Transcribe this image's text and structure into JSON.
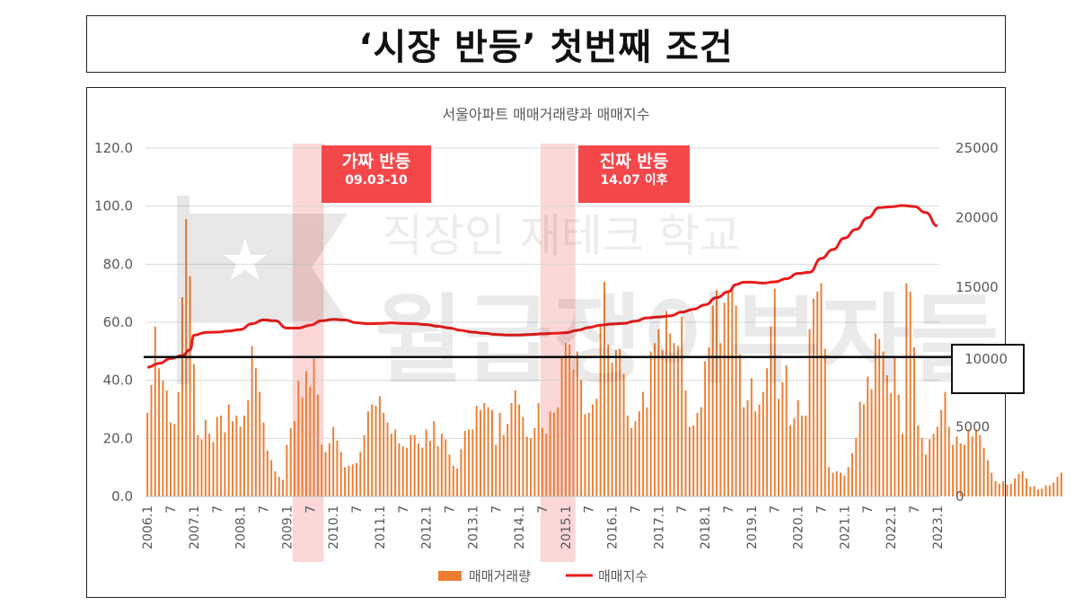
{
  "page": {
    "title": "‘시장 반등’ 첫번째 조건"
  },
  "watermark": {
    "line1": "직장인 재테크 학교",
    "line2": "월급쟁이부자들"
  },
  "annotations": {
    "fake": {
      "label": "가짜 반등",
      "range": "09.03-10"
    },
    "real": {
      "label": "진짜 반등",
      "range": "14.07 이후"
    },
    "threshold_label": "10000"
  },
  "chart_data": {
    "type": "bar",
    "title": "서울아파트 매매거래량과 매매지수",
    "xlabel": "",
    "ylabel": "",
    "grid": true,
    "legend_position": "bottom",
    "x_tick_labels": [
      "2006.1",
      "7",
      "2007.1",
      "7",
      "2008.1",
      "7",
      "2009.1",
      "7",
      "2010.1",
      "7",
      "2011.1",
      "7",
      "2012.1",
      "7",
      "2013.1",
      "7",
      "2014.1",
      "7",
      "2015.1",
      "7",
      "2016.1",
      "7",
      "2017.1",
      "7",
      "2018.1",
      "7",
      "2019.1",
      "7",
      "2020.1",
      "7",
      "2021.1",
      "7",
      "2022.1",
      "7",
      "2023.1"
    ],
    "y_left": {
      "ticks": [
        "0.0",
        "20.0",
        "40.0",
        "60.0",
        "80.0",
        "100.0",
        "120.0"
      ],
      "lim": [
        0,
        120
      ]
    },
    "y_right": {
      "ticks": [
        "0",
        "5000",
        "10000",
        "15000",
        "20000",
        "25000"
      ],
      "lim": [
        0,
        25000
      ]
    },
    "shaded_periods": [
      {
        "start": "2009.03",
        "end": "2009.10",
        "color": "#f9c9c9"
      },
      {
        "start": "2014.07",
        "end": "2015.03",
        "color": "#f9c9c9"
      }
    ],
    "reference_line": {
      "axis": "right",
      "value": 10000,
      "color": "#000000"
    },
    "series": [
      {
        "name": "매매거래량",
        "type": "bar",
        "axis": "right",
        "color": "#ed7d31",
        "start": "2006.1",
        "values": [
          6000,
          8000,
          12200,
          9200,
          8300,
          7600,
          5300,
          5200,
          7500,
          14300,
          19900,
          15800,
          9500,
          4400,
          4100,
          5500,
          4500,
          3900,
          5700,
          5800,
          4600,
          6600,
          5400,
          5800,
          5000,
          5800,
          6900,
          10800,
          9200,
          7500,
          5300,
          3300,
          2600,
          1800,
          1400,
          1200,
          3700,
          4900,
          5400,
          8300,
          7100,
          9000,
          7900,
          9900,
          7300,
          3700,
          3200,
          3800,
          5000,
          4000,
          3200,
          2100,
          2200,
          2300,
          2400,
          3200,
          4400,
          6100,
          6600,
          6500,
          7200,
          6000,
          5300,
          4500,
          4800,
          3800,
          3600,
          3500,
          4400,
          4400,
          3800,
          3500,
          4800,
          4000,
          5400,
          3600,
          4500,
          4100,
          3000,
          2200,
          2000,
          3400,
          4700,
          4800,
          4800,
          6500,
          6200,
          6700,
          6400,
          6200,
          3700,
          6000,
          4400,
          5200,
          6700,
          7600,
          6600,
          5700,
          4300,
          4200,
          4900,
          6700,
          4900,
          4500,
          6100,
          6000,
          6400,
          10000,
          11000,
          10900,
          9100,
          10400,
          8400,
          5900,
          6000,
          6600,
          7000,
          12300,
          15400,
          10900,
          9600,
          10500,
          10600,
          8800,
          5800,
          4900,
          5400,
          6100,
          7500,
          6400,
          10400,
          11000,
          12000,
          10500,
          13300,
          11700,
          11000,
          10800,
          12900,
          7600,
          5000,
          5100,
          6000,
          6400,
          9700,
          10700,
          13700,
          14800,
          11000,
          13900,
          14600,
          15000,
          13700,
          10200,
          6400,
          6900,
          8500,
          6100,
          6600,
          7500,
          9200,
          12200,
          14900,
          7000,
          8200,
          9400,
          5100,
          5600,
          6900,
          5800,
          5800,
          12000,
          14200,
          14700,
          15300,
          10600,
          2100,
          1700,
          1800,
          1700,
          1500,
          2100,
          3100,
          4200,
          6800,
          6600,
          8600,
          7700,
          11700,
          11300,
          10400,
          8700,
          7400,
          10000,
          7300,
          4500,
          15300,
          14700,
          10700,
          5100,
          4200,
          3000,
          4100,
          4500,
          5000,
          6200,
          7500,
          5000,
          3700,
          4300,
          3800,
          3700,
          4800,
          4300,
          4800,
          4400,
          3500,
          2600,
          1700,
          1100,
          900,
          1100,
          850,
          900,
          1300,
          1600,
          1800,
          1300,
          700,
          740,
          500,
          550,
          800,
          770,
          1000,
          1400,
          1700
        ]
      },
      {
        "name": "매매지수",
        "type": "line",
        "axis": "left",
        "color": "#e81c1c",
        "points": [
          {
            "x": "2006.1",
            "y": 44.5
          },
          {
            "x": "2006.4",
            "y": 45.8
          },
          {
            "x": "2006.7",
            "y": 47.5
          },
          {
            "x": "2006.10",
            "y": 48.5
          },
          {
            "x": "2006.12",
            "y": 50.5
          },
          {
            "x": "2007.1",
            "y": 55.5
          },
          {
            "x": "2007.4",
            "y": 56.5
          },
          {
            "x": "2007.7",
            "y": 56.6
          },
          {
            "x": "2007.10",
            "y": 57.0
          },
          {
            "x": "2008.1",
            "y": 57.5
          },
          {
            "x": "2008.4",
            "y": 59.5
          },
          {
            "x": "2008.7",
            "y": 60.8
          },
          {
            "x": "2008.10",
            "y": 60.5
          },
          {
            "x": "2009.1",
            "y": 58.0
          },
          {
            "x": "2009.4",
            "y": 58.0
          },
          {
            "x": "2009.7",
            "y": 59.0
          },
          {
            "x": "2009.10",
            "y": 60.5
          },
          {
            "x": "2010.1",
            "y": 61.0
          },
          {
            "x": "2010.4",
            "y": 60.8
          },
          {
            "x": "2010.7",
            "y": 59.8
          },
          {
            "x": "2010.10",
            "y": 59.5
          },
          {
            "x": "2011.1",
            "y": 59.6
          },
          {
            "x": "2011.4",
            "y": 59.8
          },
          {
            "x": "2011.7",
            "y": 59.6
          },
          {
            "x": "2011.10",
            "y": 59.5
          },
          {
            "x": "2012.1",
            "y": 59.2
          },
          {
            "x": "2012.4",
            "y": 58.6
          },
          {
            "x": "2012.7",
            "y": 58.0
          },
          {
            "x": "2012.10",
            "y": 57.2
          },
          {
            "x": "2013.1",
            "y": 56.6
          },
          {
            "x": "2013.4",
            "y": 56.2
          },
          {
            "x": "2013.7",
            "y": 55.8
          },
          {
            "x": "2013.10",
            "y": 55.6
          },
          {
            "x": "2014.1",
            "y": 55.6
          },
          {
            "x": "2014.4",
            "y": 55.8
          },
          {
            "x": "2014.7",
            "y": 56.0
          },
          {
            "x": "2014.10",
            "y": 56.2
          },
          {
            "x": "2015.1",
            "y": 56.4
          },
          {
            "x": "2015.4",
            "y": 57.2
          },
          {
            "x": "2015.7",
            "y": 58.2
          },
          {
            "x": "2015.10",
            "y": 59.0
          },
          {
            "x": "2016.1",
            "y": 59.4
          },
          {
            "x": "2016.4",
            "y": 59.6
          },
          {
            "x": "2016.7",
            "y": 60.4
          },
          {
            "x": "2016.10",
            "y": 61.5
          },
          {
            "x": "2017.1",
            "y": 61.8
          },
          {
            "x": "2017.4",
            "y": 62.2
          },
          {
            "x": "2017.7",
            "y": 63.5
          },
          {
            "x": "2017.10",
            "y": 64.5
          },
          {
            "x": "2018.1",
            "y": 66.0
          },
          {
            "x": "2018.4",
            "y": 68.5
          },
          {
            "x": "2018.7",
            "y": 70.5
          },
          {
            "x": "2018.9",
            "y": 73.0
          },
          {
            "x": "2018.11",
            "y": 73.8
          },
          {
            "x": "2019.1",
            "y": 73.8
          },
          {
            "x": "2019.4",
            "y": 73.5
          },
          {
            "x": "2019.7",
            "y": 73.9
          },
          {
            "x": "2019.10",
            "y": 75.0
          },
          {
            "x": "2020.1",
            "y": 76.8
          },
          {
            "x": "2020.4",
            "y": 77.2
          },
          {
            "x": "2020.7",
            "y": 82.0
          },
          {
            "x": "2020.10",
            "y": 85.0
          },
          {
            "x": "2021.1",
            "y": 89.0
          },
          {
            "x": "2021.4",
            "y": 92.0
          },
          {
            "x": "2021.7",
            "y": 96.0
          },
          {
            "x": "2021.10",
            "y": 99.5
          },
          {
            "x": "2022.1",
            "y": 99.8
          },
          {
            "x": "2022.4",
            "y": 100.2
          },
          {
            "x": "2022.7",
            "y": 99.9
          },
          {
            "x": "2022.10",
            "y": 97.8
          },
          {
            "x": "2023.1",
            "y": 93.2
          }
        ]
      }
    ]
  }
}
